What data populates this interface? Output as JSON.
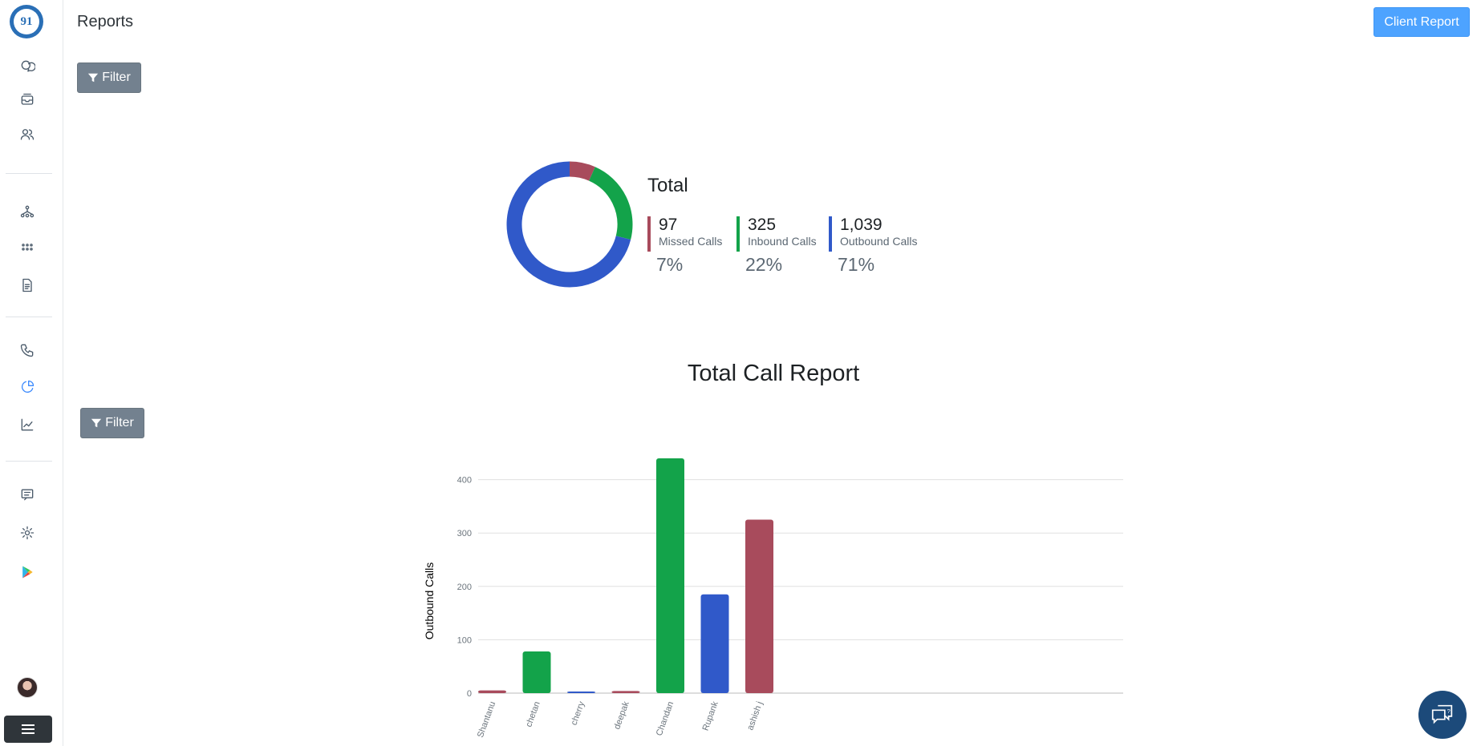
{
  "app": {
    "logo_text": "91"
  },
  "header": {
    "title": "Reports",
    "client_report_label": "Client Report"
  },
  "filters": {
    "top_label": "Filter",
    "chart_label": "Filter"
  },
  "sidebar": {
    "icons": [
      "chat-bubbles-icon",
      "inbox-icon",
      "users-icon",
      "org-chart-icon",
      "dialpad-icon",
      "document-icon",
      "phone-icon",
      "pie-chart-icon",
      "line-chart-icon",
      "message-icon",
      "settings-icon",
      "play-store-icon"
    ],
    "active": "pie-chart-icon"
  },
  "summary": {
    "title": "Total",
    "stats": [
      {
        "value": "97",
        "label": "Missed Calls",
        "percent": "7%",
        "color": "#a84b5c"
      },
      {
        "value": "325",
        "label": "Inbound Calls",
        "percent": "22%",
        "color": "#13a34a"
      },
      {
        "value": "1,039",
        "label": "Outbound Calls",
        "percent": "71%",
        "color": "#3059c9"
      }
    ]
  },
  "report": {
    "title": "Total Call Report"
  },
  "chart_data": {
    "type": "bar",
    "title": "Total Call Report",
    "xlabel": "",
    "ylabel": "Outbound Calls",
    "ylim": [
      0,
      440
    ],
    "yticks": [
      0,
      100,
      200,
      300,
      400
    ],
    "grid": true,
    "categories": [
      "Shantanu",
      "chetan",
      "cherry",
      "deepak",
      "Chandan",
      "Rupank",
      "ashish j"
    ],
    "values": [
      5,
      78,
      2,
      4,
      440,
      185,
      325
    ],
    "colors": [
      "#a84b5c",
      "#13a34a",
      "#3059c9",
      "#a84b5c",
      "#13a34a",
      "#3059c9",
      "#a84b5c"
    ]
  },
  "colors": {
    "missed": "#a84b5c",
    "inbound": "#13a34a",
    "outbound": "#3059c9",
    "accent": "#4da3ff"
  }
}
